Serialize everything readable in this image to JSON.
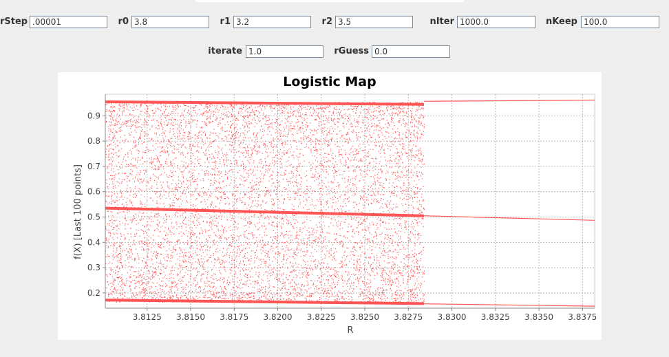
{
  "controls": {
    "rStep": {
      "label": "rStep",
      "value": ".00001"
    },
    "r0": {
      "label": "r0",
      "value": "3.8"
    },
    "r1": {
      "label": "r1",
      "value": "3.2"
    },
    "r2": {
      "label": "r2",
      "value": "3.5"
    },
    "nIter": {
      "label": "nIter",
      "value": "1000.0"
    },
    "nKeep": {
      "label": "nKeep",
      "value": "100.0"
    },
    "iterate": {
      "label": "iterate",
      "value": "1.0"
    },
    "rGuess": {
      "label": "rGuess",
      "value": "0.0"
    }
  },
  "chart_data": {
    "type": "scatter",
    "title": "Logistic Map",
    "xlabel": "R",
    "ylabel": "f(X) [Last 100 points]",
    "xlim": [
      3.8101,
      3.8382
    ],
    "ylim": [
      0.14,
      0.985
    ],
    "xticks": [
      "3.8125",
      "3.8150",
      "3.8175",
      "3.8200",
      "3.8225",
      "3.8250",
      "3.8275",
      "3.8300",
      "3.8325",
      "3.8350",
      "3.8375"
    ],
    "yticks": [
      "0.2",
      "0.3",
      "0.4",
      "0.5",
      "0.6",
      "0.7",
      "0.8",
      "0.9"
    ],
    "grid": true,
    "point_color": "#ff5555",
    "chaotic_region": {
      "x_start": 3.8101,
      "x_end": 3.8284,
      "y_low": 0.165,
      "y_high": 0.955
    },
    "dense_bands": [
      {
        "x_start": 3.8101,
        "x_end": 3.8284,
        "y_from": 0.955,
        "y_to": 0.945
      },
      {
        "x_start": 3.8101,
        "x_end": 3.8284,
        "y_from": 0.535,
        "y_to": 0.505
      },
      {
        "x_start": 3.8101,
        "x_end": 3.8284,
        "y_from": 0.172,
        "y_to": 0.158
      }
    ],
    "series": [
      {
        "values": [
          [
            3.8284,
            0.957
          ],
          [
            3.8382,
            0.962
          ]
        ]
      },
      {
        "values": [
          [
            3.8284,
            0.505
          ],
          [
            3.8382,
            0.487
          ]
        ]
      },
      {
        "values": [
          [
            3.8284,
            0.157
          ],
          [
            3.8382,
            0.148
          ]
        ]
      }
    ]
  }
}
